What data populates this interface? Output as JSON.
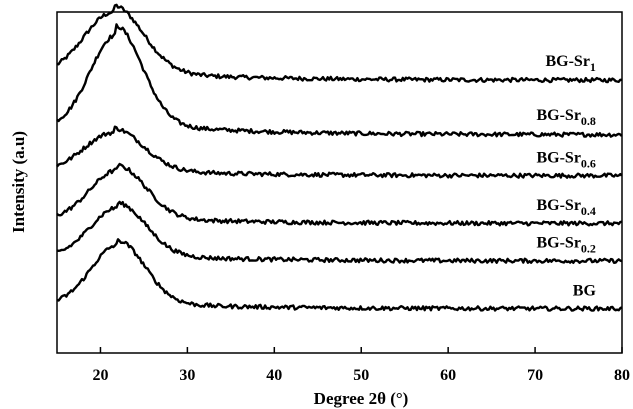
{
  "chart_data": {
    "type": "line",
    "title": "",
    "xlabel": "Degree 2θ (°)",
    "ylabel": "Intensity (a.u)",
    "xlim": [
      15,
      80
    ],
    "x_ticks": [
      20,
      30,
      40,
      50,
      60,
      70,
      80
    ],
    "y_ticks_shown": false,
    "grid": false,
    "legend": "inline labels at right of each curve",
    "series": [
      {
        "name": "BG-Sr1",
        "label_main": "BG-Sr",
        "label_sub": "1",
        "baseline": 0.8,
        "peak_x": 21.5,
        "peak_height": 0.19,
        "peak_width": 3.4,
        "tail": 0.03
      },
      {
        "name": "BG-Sr0.8",
        "label_main": "BG-Sr",
        "label_sub": "0.8",
        "baseline": 0.64,
        "peak_x": 21.8,
        "peak_height": 0.28,
        "peak_width": 3.0,
        "tail": 0.04
      },
      {
        "name": "BG-Sr0.6",
        "label_main": "BG-Sr",
        "label_sub": "0.6",
        "baseline": 0.52,
        "peak_x": 21.5,
        "peak_height": 0.12,
        "peak_width": 3.4,
        "tail": 0.02
      },
      {
        "name": "BG-Sr0.4",
        "label_main": "BG-Sr",
        "label_sub": "0.4",
        "baseline": 0.38,
        "peak_x": 22.0,
        "peak_height": 0.15,
        "peak_width": 3.2,
        "tail": 0.02
      },
      {
        "name": "BG-Sr0.2",
        "label_main": "BG-Sr",
        "label_sub": "0.2",
        "baseline": 0.27,
        "peak_x": 22.0,
        "peak_height": 0.15,
        "peak_width": 3.2,
        "tail": 0.02
      },
      {
        "name": "BG",
        "label_main": "BG",
        "label_sub": "",
        "baseline": 0.13,
        "peak_x": 22.0,
        "peak_height": 0.18,
        "peak_width": 3.1,
        "tail": 0.02
      }
    ],
    "line_color": "#000000"
  }
}
